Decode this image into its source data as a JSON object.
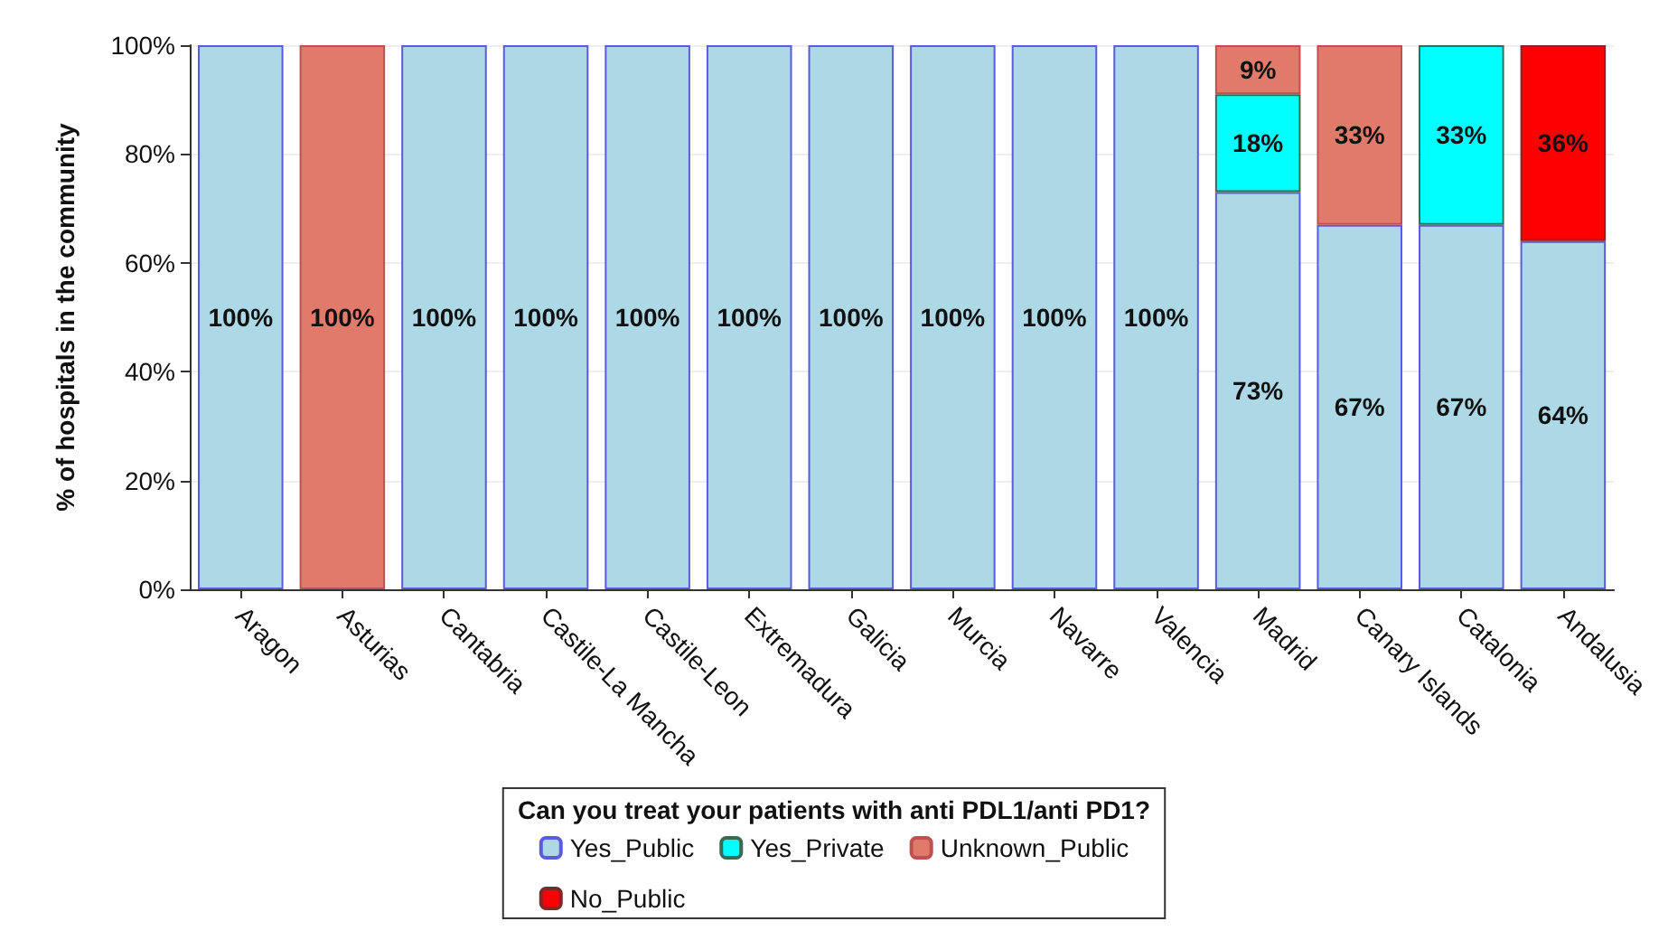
{
  "chart_data": {
    "type": "bar",
    "stacked": true,
    "ylabel": "% of hospitals in the community",
    "legend_title": "Can you treat your patients with anti PDL1/anti PD1?",
    "categories": [
      "Aragon",
      "Asturias",
      "Cantabria",
      "Castile-La Mancha",
      "Castile-Leon",
      "Extremadura",
      "Galicia",
      "Murcia",
      "Navarre",
      "Valencia",
      "Madrid",
      "Canary Islands",
      "Catalonia",
      "Andalusia"
    ],
    "series": [
      {
        "name": "Yes_Public",
        "color": "#add8e6",
        "values": [
          100,
          null,
          100,
          100,
          100,
          100,
          100,
          100,
          100,
          100,
          73,
          67,
          67,
          64
        ],
        "value_labels": [
          "100%",
          null,
          "100%",
          "100%",
          "100%",
          "100%",
          "100%",
          "100%",
          "100%",
          "100%",
          "73%",
          "67%",
          "67%",
          "64%"
        ]
      },
      {
        "name": "Yes_Private",
        "color": "#00ffff",
        "values": [
          null,
          null,
          null,
          null,
          null,
          null,
          null,
          null,
          null,
          null,
          18,
          null,
          33,
          null
        ],
        "value_labels": [
          null,
          null,
          null,
          null,
          null,
          null,
          null,
          null,
          null,
          null,
          "18%",
          null,
          "33%",
          null
        ]
      },
      {
        "name": "Unknown_Public",
        "color": "#e07b6c",
        "values": [
          null,
          100,
          null,
          null,
          null,
          null,
          null,
          null,
          null,
          null,
          9,
          33,
          null,
          null
        ],
        "value_labels": [
          null,
          "100%",
          null,
          null,
          null,
          null,
          null,
          null,
          null,
          null,
          "9%",
          "33%",
          null,
          null
        ]
      },
      {
        "name": "No_Public",
        "color": "#ff0000",
        "values": [
          null,
          null,
          null,
          null,
          null,
          null,
          null,
          null,
          null,
          null,
          null,
          null,
          null,
          36
        ],
        "value_labels": [
          null,
          null,
          null,
          null,
          null,
          null,
          null,
          null,
          null,
          null,
          null,
          null,
          null,
          "36%"
        ]
      }
    ],
    "ylim": [
      0,
      100
    ],
    "yticks": [
      {
        "value": 0,
        "label": "0%"
      },
      {
        "value": 20,
        "label": "20%"
      },
      {
        "value": 40,
        "label": "40%"
      },
      {
        "value": 60,
        "label": "60%"
      },
      {
        "value": 80,
        "label": "80%"
      },
      {
        "value": 100,
        "label": "100%"
      }
    ],
    "grid": "y",
    "legend": "bottom"
  }
}
